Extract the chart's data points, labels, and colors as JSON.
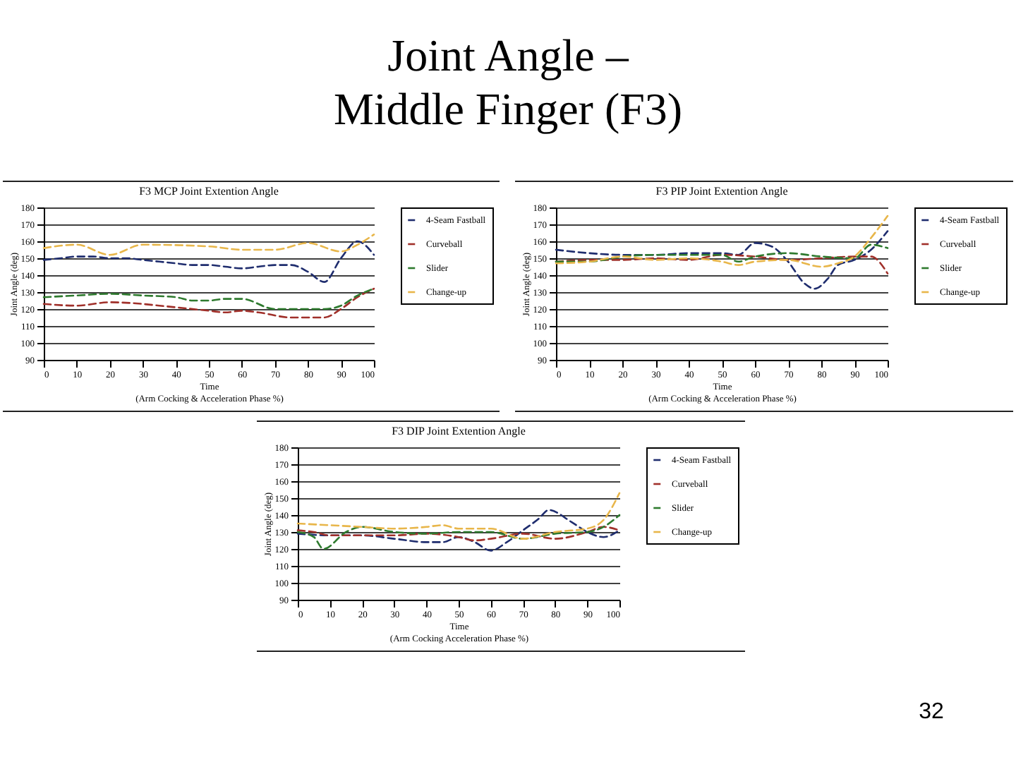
{
  "chart_data": [
    {
      "type": "line",
      "title": "F3 MCP Joint Extention Angle",
      "xlabel": "Time\n(Arm Cocking & Acceleration Phase %)",
      "ylabel": "Joint Angle (deg)",
      "annotations": [
        "Joint Angle –\nMiddle Finger (F3)"
      ],
      "xlim": [
        0,
        100
      ],
      "xticks": [
        0,
        10,
        20,
        30,
        40,
        50,
        60,
        70,
        80,
        90,
        100
      ],
      "ylim": [
        90,
        180
      ],
      "yticks": [
        90,
        100,
        110,
        120,
        130,
        140,
        150,
        160,
        170,
        180
      ],
      "grid": "y",
      "legend": "right",
      "line_style": "dashed",
      "series": [
        {
          "name": "4-Seam Fastball",
          "color": "#1f2d6e",
          "x": [
            0,
            5,
            10,
            15,
            20,
            25,
            30,
            35,
            40,
            45,
            50,
            55,
            60,
            65,
            70,
            75,
            80,
            85,
            90,
            95,
            100
          ],
          "values": [
            149,
            150,
            151,
            151,
            150,
            150,
            149,
            148,
            147,
            146,
            146,
            145,
            144,
            145,
            146,
            146,
            142,
            136,
            150,
            160,
            152
          ]
        },
        {
          "name": "Curveball",
          "color": "#a0302a",
          "x": [
            0,
            10,
            20,
            30,
            35,
            40,
            50,
            55,
            60,
            65,
            75,
            85,
            90,
            95,
            100
          ],
          "values": [
            123,
            122,
            124,
            123,
            122,
            121,
            119,
            118,
            119,
            118,
            115,
            115,
            120,
            127,
            132
          ]
        },
        {
          "name": "Slider",
          "color": "#2e7a2e",
          "x": [
            0,
            10,
            20,
            30,
            40,
            45,
            50,
            55,
            60,
            70,
            80,
            85,
            90,
            95,
            100
          ],
          "values": [
            127,
            128,
            129,
            128,
            127,
            125,
            125,
            126,
            126,
            120,
            120,
            120,
            122,
            128,
            132
          ]
        },
        {
          "name": "Change-up",
          "color": "#e8b64a",
          "x": [
            0,
            10,
            20,
            30,
            50,
            60,
            70,
            80,
            90,
            95,
            100
          ],
          "values": [
            156,
            158,
            152,
            158,
            157,
            155,
            155,
            159,
            154,
            158,
            164
          ]
        }
      ]
    },
    {
      "type": "line",
      "title": "F3 PIP Joint Extention Angle",
      "xlabel": "Time\n(Arm Cocking & Acceleration Phase %)",
      "ylabel": "Joint Angle (deg)",
      "xlim": [
        0,
        100
      ],
      "xticks": [
        0,
        10,
        20,
        30,
        40,
        50,
        60,
        70,
        80,
        90,
        100
      ],
      "ylim": [
        90,
        180
      ],
      "yticks": [
        90,
        100,
        110,
        120,
        130,
        140,
        150,
        160,
        170,
        180
      ],
      "grid": "y",
      "legend": "right",
      "line_style": "dashed",
      "series": [
        {
          "name": "4-Seam Fastball",
          "color": "#1f2d6e",
          "x": [
            0,
            10,
            20,
            30,
            40,
            50,
            55,
            60,
            65,
            70,
            75,
            78,
            82,
            85,
            90,
            95,
            100
          ],
          "values": [
            155,
            153,
            152,
            152,
            153,
            153,
            152,
            159,
            157,
            148,
            135,
            132,
            138,
            146,
            149,
            155,
            166
          ]
        },
        {
          "name": "Curveball",
          "color": "#a0302a",
          "x": [
            0,
            10,
            20,
            30,
            40,
            50,
            60,
            70,
            80,
            90,
            95,
            100
          ],
          "values": [
            148,
            149,
            149,
            150,
            149,
            152,
            151,
            149,
            150,
            151,
            151,
            141
          ]
        },
        {
          "name": "Slider",
          "color": "#2e7a2e",
          "x": [
            0,
            10,
            20,
            30,
            40,
            50,
            55,
            60,
            70,
            80,
            90,
            95,
            100
          ],
          "values": [
            148,
            148,
            151,
            152,
            152,
            152,
            148,
            151,
            153,
            151,
            150,
            158,
            156
          ]
        },
        {
          "name": "Change-up",
          "color": "#e8b64a",
          "x": [
            0,
            10,
            20,
            30,
            40,
            50,
            55,
            60,
            70,
            80,
            85,
            90,
            95,
            100
          ],
          "values": [
            147,
            148,
            151,
            149,
            150,
            148,
            146,
            148,
            149,
            145,
            147,
            151,
            162,
            175
          ]
        }
      ]
    },
    {
      "type": "line",
      "title": "F3 DIP Joint Extention Angle",
      "xlabel": "Time\n(Arm Cocking Acceleration Phase %)",
      "ylabel": "Joint Angle (deg)",
      "annotations": [
        "32"
      ],
      "xlim": [
        0,
        100
      ],
      "xticks": [
        0,
        10,
        20,
        30,
        40,
        50,
        60,
        70,
        80,
        90,
        100
      ],
      "ylim": [
        90,
        180
      ],
      "yticks": [
        90,
        100,
        110,
        120,
        130,
        140,
        150,
        160,
        170,
        180
      ],
      "grid": "y",
      "legend": "right",
      "line_style": "dashed",
      "series": [
        {
          "name": "4-Seam Fastball",
          "color": "#1f2d6e",
          "x": [
            0,
            10,
            20,
            30,
            40,
            45,
            50,
            55,
            60,
            65,
            70,
            75,
            78,
            85,
            90,
            95,
            100
          ],
          "values": [
            129,
            128,
            128,
            126,
            124,
            124,
            127,
            124,
            119,
            124,
            131,
            138,
            143,
            136,
            130,
            127,
            131
          ]
        },
        {
          "name": "Curveball",
          "color": "#a0302a",
          "x": [
            0,
            5,
            10,
            20,
            30,
            40,
            50,
            55,
            60,
            70,
            80,
            90,
            95,
            100
          ],
          "values": [
            131,
            130,
            128,
            128,
            128,
            129,
            127,
            125,
            126,
            129,
            126,
            130,
            133,
            131
          ]
        },
        {
          "name": "Slider",
          "color": "#2e7a2e",
          "x": [
            0,
            5,
            8,
            15,
            20,
            30,
            40,
            50,
            60,
            70,
            80,
            90,
            95,
            100
          ],
          "values": [
            130,
            127,
            120,
            130,
            133,
            130,
            129,
            130,
            130,
            126,
            129,
            130,
            133,
            140
          ]
        },
        {
          "name": "Change-up",
          "color": "#e8b64a",
          "x": [
            0,
            10,
            20,
            30,
            40,
            45,
            50,
            60,
            70,
            80,
            90,
            95,
            100
          ],
          "values": [
            135,
            134,
            133,
            132,
            133,
            134,
            132,
            132,
            126,
            130,
            132,
            137,
            153
          ]
        }
      ]
    }
  ]
}
